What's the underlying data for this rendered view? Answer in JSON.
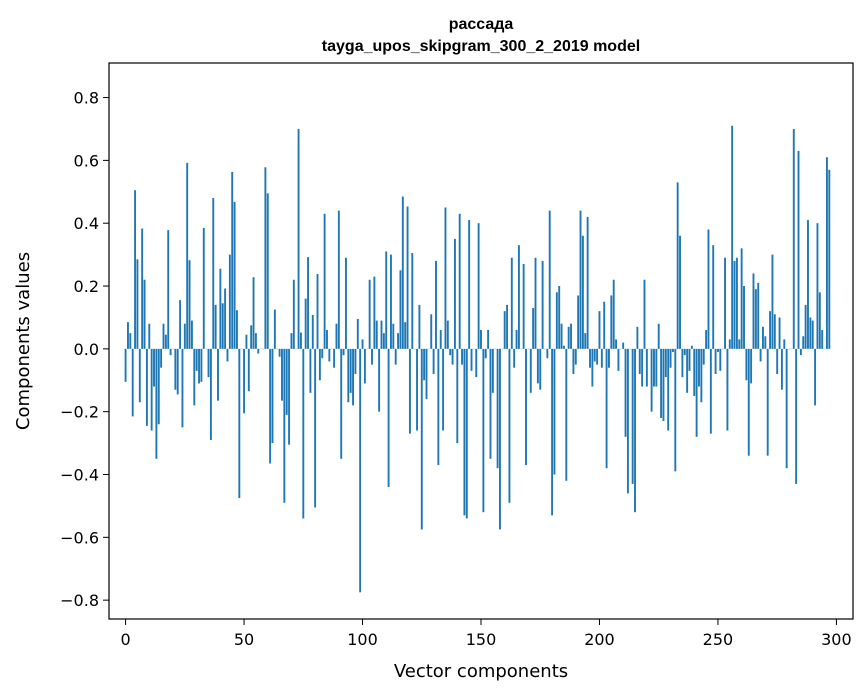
{
  "chart_data": {
    "type": "bar",
    "title": "рассада",
    "subtitle": "tayga_upos_skipgram_300_2_2019 model",
    "xlabel": "Vector components",
    "ylabel": "Components values",
    "xlim": [
      -7,
      307
    ],
    "ylim": [
      -0.86,
      0.91
    ],
    "xticks": [
      0,
      50,
      100,
      150,
      200,
      250,
      300
    ],
    "xtick_labels": [
      "0",
      "50",
      "100",
      "150",
      "200",
      "250",
      "300"
    ],
    "yticks": [
      -0.8,
      -0.6,
      -0.4,
      -0.2,
      0.0,
      0.2,
      0.4,
      0.6,
      0.8
    ],
    "ytick_labels": [
      "−0.8",
      "−0.6",
      "−0.4",
      "−0.2",
      "0.0",
      "0.2",
      "0.4",
      "0.6",
      "0.8"
    ],
    "bar_color": "#1f77b4",
    "grid": false,
    "series": [
      {
        "values": [
          -0.105,
          0.085,
          0.05,
          -0.215,
          0.505,
          0.285,
          -0.17,
          0.383,
          0.22,
          -0.245,
          0.08,
          -0.26,
          -0.12,
          -0.35,
          -0.24,
          -0.06,
          0.08,
          0.045,
          0.378,
          -0.02,
          0.0,
          -0.13,
          -0.145,
          0.155,
          -0.25,
          0.08,
          0.592,
          0.282,
          0.09,
          -0.18,
          -0.07,
          -0.11,
          -0.105,
          0.385,
          0.0,
          -0.09,
          -0.29,
          0.48,
          0.14,
          -0.165,
          0.255,
          0.145,
          0.192,
          -0.04,
          0.3,
          0.563,
          0.468,
          0.123,
          -0.475,
          0.0,
          -0.205,
          0.045,
          -0.135,
          0.075,
          0.228,
          0.05,
          -0.015,
          0.0,
          0.0,
          0.578,
          0.495,
          -0.365,
          -0.3,
          0.125,
          0.0,
          -0.025,
          -0.165,
          -0.49,
          -0.21,
          -0.305,
          0.05,
          0.22,
          0.0,
          0.7,
          0.052,
          -0.54,
          0.16,
          0.292,
          -0.14,
          0.108,
          -0.505,
          0.238,
          -0.1,
          -0.03,
          0.43,
          0.06,
          -0.04,
          0.0,
          -0.06,
          0.08,
          0.44,
          -0.35,
          -0.02,
          0.29,
          -0.17,
          -0.14,
          -0.18,
          -0.08,
          0.095,
          -0.775,
          0.03,
          -0.11,
          0.0,
          0.22,
          -0.05,
          0.23,
          0.09,
          -0.2,
          0.09,
          0.05,
          0.31,
          -0.44,
          0.3,
          0.08,
          -0.05,
          0.05,
          0.25,
          0.485,
          0.085,
          0.453,
          -0.27,
          0.305,
          0.0,
          -0.26,
          0.14,
          -0.575,
          -0.1,
          -0.16,
          0.0,
          0.11,
          -0.08,
          0.28,
          -0.37,
          0.06,
          -0.26,
          0.45,
          0.09,
          -0.02,
          -0.05,
          0.35,
          -0.3,
          0.43,
          -0.05,
          -0.53,
          -0.54,
          0.41,
          -0.07,
          0.0,
          -0.09,
          0.4,
          0.06,
          -0.52,
          -0.03,
          0.06,
          -0.35,
          -0.14,
          0.0,
          -0.38,
          -0.575,
          0.0,
          0.12,
          0.14,
          -0.49,
          0.29,
          -0.06,
          0.06,
          0.33,
          0.0,
          0.27,
          -0.37,
          0.0,
          -0.14,
          0.13,
          0.29,
          -0.11,
          -0.13,
          0.28,
          0.0,
          -0.03,
          0.44,
          -0.53,
          -0.4,
          0.18,
          0.2,
          0.08,
          0.01,
          -0.42,
          0.07,
          0.08,
          -0.08,
          -0.05,
          0.17,
          0.44,
          0.36,
          0.05,
          0.42,
          -0.06,
          -0.12,
          -0.04,
          -0.05,
          0.12,
          -0.06,
          0.15,
          -0.38,
          -0.06,
          0.17,
          0.22,
          0.03,
          -0.07,
          0.0,
          0.02,
          -0.28,
          -0.46,
          0.0,
          -0.43,
          -0.52,
          0.07,
          -0.08,
          -0.12,
          0.22,
          -0.12,
          0.0,
          -0.2,
          -0.12,
          -0.12,
          0.08,
          -0.22,
          -0.23,
          -0.09,
          -0.26,
          -0.06,
          -0.01,
          -0.39,
          0.53,
          0.36,
          -0.09,
          -0.02,
          -0.14,
          -0.07,
          0.01,
          -0.15,
          -0.28,
          -0.12,
          -0.17,
          -0.05,
          0.06,
          0.38,
          -0.27,
          0.33,
          -0.08,
          -0.01,
          -0.07,
          0.0,
          0.29,
          -0.26,
          0.03,
          0.71,
          0.28,
          0.29,
          0.03,
          0.32,
          0.2,
          -0.1,
          -0.34,
          -0.11,
          0.24,
          0.19,
          0.21,
          -0.04,
          0.07,
          0.04,
          -0.34,
          0.12,
          0.3,
          0.11,
          -0.08,
          0.1,
          -0.13,
          0.03,
          -0.38,
          0.0,
          0.0,
          0.7,
          -0.43,
          0.63,
          -0.02,
          0.04,
          0.14,
          0.41,
          0.1,
          0.09,
          -0.18,
          0.4,
          0.18,
          0.06,
          0.0,
          0.61,
          0.57
        ]
      }
    ]
  }
}
